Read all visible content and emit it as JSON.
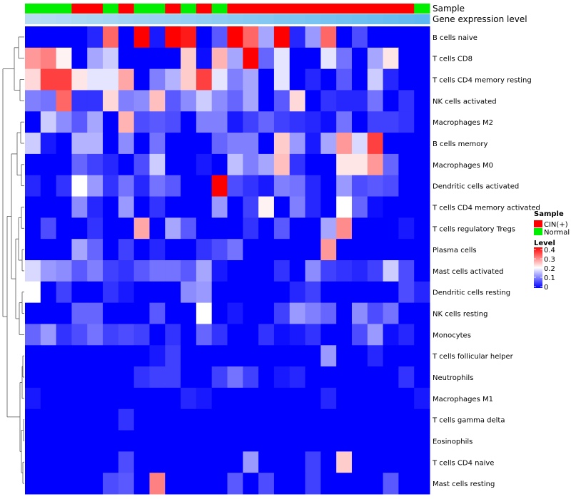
{
  "chart_data": {
    "type": "heatmap",
    "annotation_labels": [
      "Sample",
      "Gene expression level"
    ],
    "sample_groups": [
      "Normal",
      "Normal",
      "Normal",
      "CIN(+)",
      "CIN(+)",
      "Normal",
      "CIN(+)",
      "Normal",
      "Normal",
      "CIN(+)",
      "Normal",
      "CIN(+)",
      "Normal",
      "CIN(+)",
      "CIN(+)",
      "CIN(+)",
      "CIN(+)",
      "CIN(+)",
      "CIN(+)",
      "CIN(+)",
      "CIN(+)",
      "CIN(+)",
      "CIN(+)",
      "CIN(+)",
      "CIN(+)",
      "Normal"
    ],
    "expression_level_ramp": [
      "#b6dcf4",
      "#8ccaf2",
      "#5fb9f1"
    ],
    "rows": [
      "B cells naive",
      "T cells CD8",
      "T cells CD4 memory resting",
      "NK cells activated",
      "Macrophages M2",
      "B cells memory",
      "Macrophages M0",
      "Dendritic cells activated",
      "T cells CD4 memory activated",
      "T cells regulatory  Tregs",
      "Plasma cells",
      "Mast cells activated",
      "Dendritic cells resting",
      "NK cells resting",
      "Monocytes",
      "T cells follicular helper",
      "Neutrophils",
      "Macrophages M1",
      "T cells gamma delta",
      "Eosinophils",
      "T cells CD4 naive",
      "Mast cells resting"
    ],
    "values": [
      [
        0.0,
        0.0,
        0.0,
        0.0,
        0.03,
        0.32,
        0.0,
        0.4,
        0.02,
        0.4,
        0.38,
        0.0,
        0.07,
        0.4,
        0.32,
        0.13,
        0.4,
        0.03,
        0.12,
        0.32,
        0.0,
        0.06,
        0.0,
        0.0,
        0.0,
        0.0
      ],
      [
        0.28,
        0.3,
        0.21,
        0.0,
        0.13,
        0.16,
        0.0,
        0.0,
        0.0,
        0.0,
        0.24,
        0.01,
        0.26,
        0.13,
        0.4,
        0.08,
        0.18,
        0.0,
        0.0,
        0.18,
        0.09,
        0.0,
        0.13,
        0.22,
        0.0,
        0.0
      ],
      [
        0.23,
        0.35,
        0.35,
        0.22,
        0.18,
        0.18,
        0.27,
        0.0,
        0.1,
        0.14,
        0.24,
        0.35,
        0.18,
        0.1,
        0.13,
        0.0,
        0.18,
        0.0,
        0.03,
        0.0,
        0.07,
        0.0,
        0.16,
        0.03,
        0.0,
        0.0
      ],
      [
        0.1,
        0.09,
        0.32,
        0.04,
        0.04,
        0.23,
        0.1,
        0.11,
        0.25,
        0.07,
        0.11,
        0.16,
        0.11,
        0.08,
        0.13,
        0.0,
        0.07,
        0.23,
        0.0,
        0.04,
        0.03,
        0.03,
        0.09,
        0.0,
        0.04,
        0.0
      ],
      [
        0.0,
        0.16,
        0.11,
        0.07,
        0.13,
        0.0,
        0.26,
        0.06,
        0.07,
        0.06,
        0.0,
        0.1,
        0.1,
        0.02,
        0.05,
        0.08,
        0.05,
        0.04,
        0.03,
        0.01,
        0.09,
        0.0,
        0.05,
        0.05,
        0.04,
        0.0
      ],
      [
        0.16,
        0.02,
        0.0,
        0.14,
        0.14,
        0.0,
        0.11,
        0.0,
        0.09,
        0.0,
        0.0,
        0.0,
        0.08,
        0.1,
        0.1,
        0.0,
        0.24,
        0.12,
        0.02,
        0.13,
        0.28,
        0.17,
        0.35,
        0.0,
        0.0,
        0.0
      ],
      [
        0.0,
        0.0,
        0.0,
        0.08,
        0.05,
        0.03,
        0.0,
        0.06,
        0.16,
        0.0,
        0.0,
        0.02,
        0.0,
        0.15,
        0.1,
        0.13,
        0.25,
        0.04,
        0.0,
        0.0,
        0.22,
        0.22,
        0.28,
        0.08,
        0.0,
        0.0
      ],
      [
        0.03,
        0.0,
        0.04,
        0.2,
        0.12,
        0.04,
        0.09,
        0.03,
        0.09,
        0.07,
        0.0,
        0.0,
        0.4,
        0.06,
        0.04,
        0.02,
        0.1,
        0.09,
        0.03,
        0.0,
        0.12,
        0.06,
        0.07,
        0.06,
        0.0,
        0.0
      ],
      [
        0.0,
        0.0,
        0.0,
        0.11,
        0.03,
        0.0,
        0.12,
        0.0,
        0.04,
        0.0,
        0.0,
        0.0,
        0.12,
        0.0,
        0.05,
        0.21,
        0.0,
        0.1,
        0.03,
        0.0,
        0.2,
        0.08,
        0.01,
        0.0,
        0.0,
        0.0
      ],
      [
        0.0,
        0.06,
        0.0,
        0.0,
        0.04,
        0.0,
        0.0,
        0.27,
        0.0,
        0.13,
        0.07,
        0.0,
        0.0,
        0.0,
        0.04,
        0.0,
        0.07,
        0.0,
        0.0,
        0.13,
        0.29,
        0.0,
        0.0,
        0.0,
        0.02,
        0.0
      ],
      [
        0.0,
        0.0,
        0.0,
        0.13,
        0.08,
        0.0,
        0.05,
        0.0,
        0.03,
        0.0,
        0.0,
        0.04,
        0.06,
        0.09,
        0.0,
        0.0,
        0.0,
        0.0,
        0.0,
        0.28,
        0.0,
        0.0,
        0.0,
        0.0,
        0.0,
        0.0
      ],
      [
        0.17,
        0.12,
        0.11,
        0.07,
        0.1,
        0.05,
        0.04,
        0.07,
        0.09,
        0.09,
        0.07,
        0.13,
        0.02,
        0.0,
        0.0,
        0.0,
        0.04,
        0.0,
        0.11,
        0.05,
        0.04,
        0.03,
        0.05,
        0.16,
        0.06,
        0.0
      ],
      [
        0.2,
        0.0,
        0.05,
        0.0,
        0.0,
        0.04,
        0.02,
        0.0,
        0.0,
        0.0,
        0.11,
        0.12,
        0.0,
        0.0,
        0.0,
        0.0,
        0.0,
        0.03,
        0.05,
        0.0,
        0.0,
        0.0,
        0.0,
        0.0,
        0.06,
        0.03
      ],
      [
        0.0,
        0.0,
        0.0,
        0.08,
        0.08,
        0.0,
        0.0,
        0.0,
        0.07,
        0.0,
        0.0,
        0.2,
        0.0,
        0.02,
        0.0,
        0.0,
        0.05,
        0.12,
        0.1,
        0.08,
        0.0,
        0.11,
        0.06,
        0.09,
        0.0,
        0.0
      ],
      [
        0.08,
        0.12,
        0.04,
        0.06,
        0.09,
        0.05,
        0.06,
        0.05,
        0.0,
        0.04,
        0.0,
        0.08,
        0.04,
        0.0,
        0.0,
        0.04,
        0.01,
        0.02,
        0.04,
        0.0,
        0.0,
        0.06,
        0.12,
        0.01,
        0.03,
        0.0
      ],
      [
        0.0,
        0.0,
        0.0,
        0.0,
        0.0,
        0.0,
        0.0,
        0.0,
        0.02,
        0.05,
        0.0,
        0.0,
        0.0,
        0.0,
        0.0,
        0.0,
        0.0,
        0.0,
        0.0,
        0.12,
        0.0,
        0.0,
        0.03,
        0.0,
        0.0,
        0.0
      ],
      [
        0.0,
        0.0,
        0.0,
        0.0,
        0.0,
        0.0,
        0.0,
        0.04,
        0.05,
        0.05,
        0.0,
        0.0,
        0.05,
        0.09,
        0.05,
        0.0,
        0.02,
        0.03,
        0.0,
        0.0,
        0.0,
        0.0,
        0.0,
        0.0,
        0.04,
        0.0
      ],
      [
        0.02,
        0.0,
        0.0,
        0.0,
        0.0,
        0.0,
        0.0,
        0.0,
        0.0,
        0.0,
        0.03,
        0.02,
        0.0,
        0.0,
        0.0,
        0.0,
        0.0,
        0.0,
        0.0,
        0.03,
        0.0,
        0.0,
        0.0,
        0.0,
        0.0,
        0.02
      ],
      [
        0.0,
        0.0,
        0.0,
        0.0,
        0.0,
        0.0,
        0.04,
        0.0,
        0.0,
        0.0,
        0.0,
        0.0,
        0.0,
        0.0,
        0.0,
        0.0,
        0.0,
        0.0,
        0.0,
        0.0,
        0.0,
        0.0,
        0.0,
        0.0,
        0.0,
        0.0
      ],
      [
        0.0,
        0.0,
        0.0,
        0.0,
        0.0,
        0.0,
        0.0,
        0.0,
        0.0,
        0.0,
        0.0,
        0.0,
        0.0,
        0.0,
        0.0,
        0.0,
        0.0,
        0.0,
        0.0,
        0.0,
        0.0,
        0.0,
        0.0,
        0.0,
        0.0,
        0.0
      ],
      [
        0.0,
        0.0,
        0.0,
        0.0,
        0.0,
        0.0,
        0.06,
        0.0,
        0.0,
        0.0,
        0.0,
        0.0,
        0.0,
        0.0,
        0.12,
        0.0,
        0.0,
        0.0,
        0.05,
        0.0,
        0.24,
        0.0,
        0.0,
        0.0,
        0.0,
        0.0
      ],
      [
        0.0,
        0.0,
        0.0,
        0.0,
        0.0,
        0.06,
        0.07,
        0.0,
        0.3,
        0.0,
        0.0,
        0.0,
        0.0,
        0.07,
        0.0,
        0.06,
        0.0,
        0.0,
        0.05,
        0.0,
        0.0,
        0.0,
        0.0,
        0.07,
        0.0,
        0.0
      ]
    ],
    "row_dendrogram": "hierarchical clustering shown on left",
    "legend_sample": {
      "title": "Sample",
      "items": [
        {
          "label": "CIN(+)",
          "color": "#ff0000"
        },
        {
          "label": "Normal",
          "color": "#00ee00"
        }
      ]
    },
    "legend_level": {
      "title": "Level",
      "ticks": [
        "0.4",
        "0.3",
        "0.2",
        "0.1",
        "0"
      ],
      "tick_values": [
        0.4,
        0.3,
        0.2,
        0.1,
        0.0
      ],
      "range": [
        0,
        0.4
      ],
      "colors": {
        "low": "#0000ff",
        "mid": "#ffffff",
        "high": "#ff0000"
      },
      "mid_value": 0.2
    }
  }
}
